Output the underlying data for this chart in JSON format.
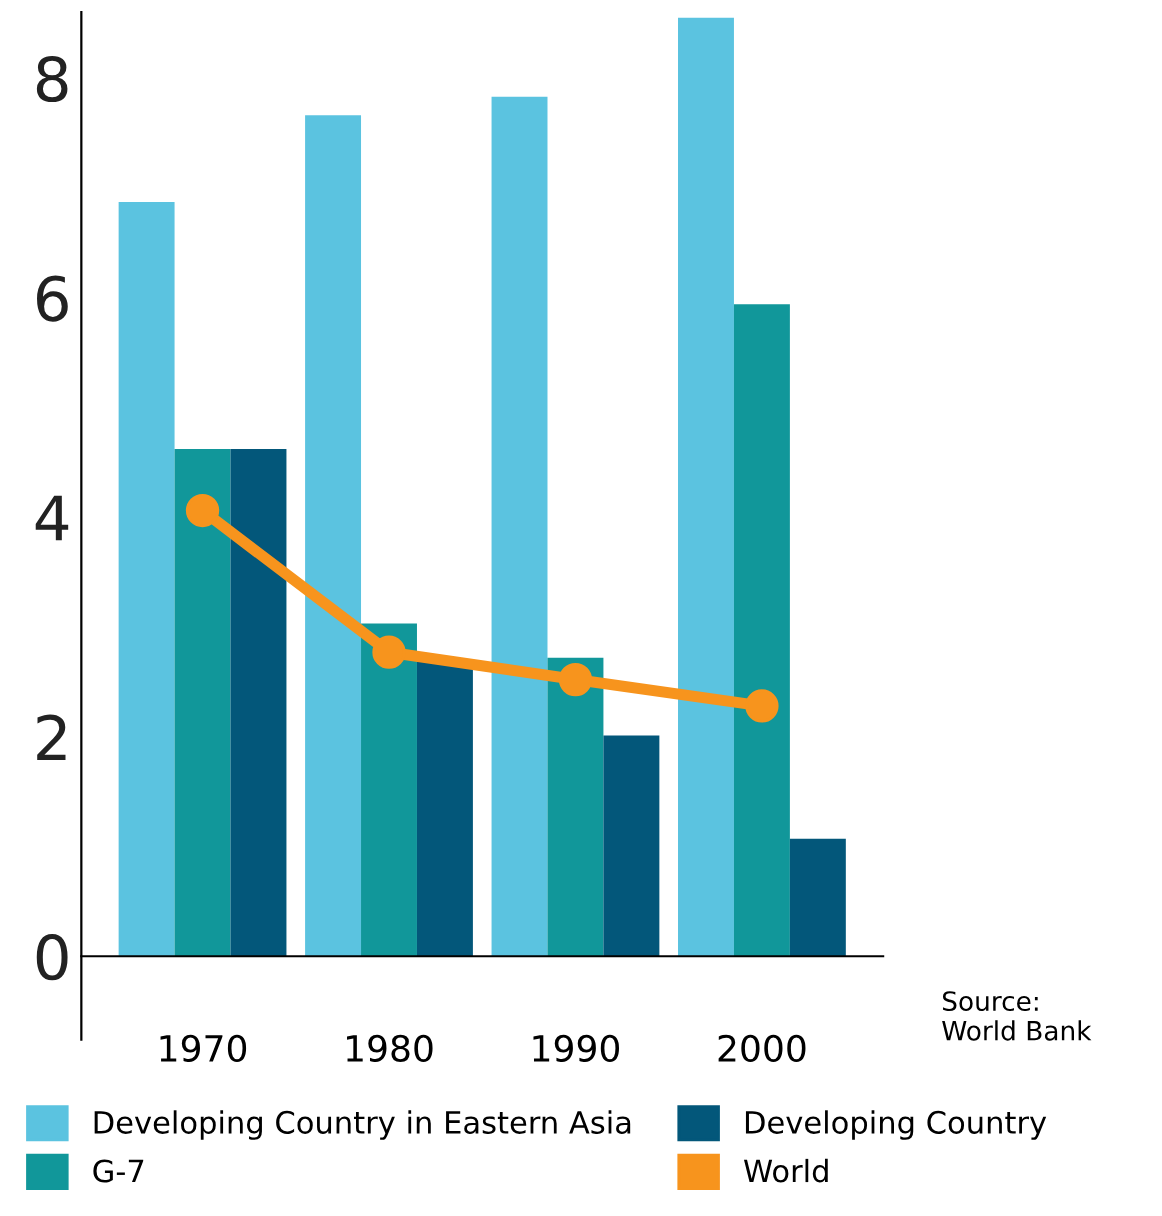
{
  "chart_data": {
    "type": "bar",
    "categories": [
      "1970",
      "1980",
      "1990",
      "2000"
    ],
    "series": [
      {
        "name": "Developing Country in Eastern Asia",
        "color": "#5bc3e0",
        "values": [
          6.87,
          7.66,
          7.83,
          8.55
        ]
      },
      {
        "name": "G-7",
        "color": "#11979a",
        "values": [
          4.62,
          3.03,
          2.72,
          5.94
        ]
      },
      {
        "name": "Developing Country",
        "color": "#03577a",
        "values": [
          4.62,
          2.68,
          2.01,
          1.07
        ]
      },
      {
        "name": "World",
        "type": "line",
        "color": "#f7941d",
        "values": [
          4.06,
          2.77,
          2.52,
          2.28
        ],
        "marker": "circle"
      }
    ],
    "ylim": [
      -0.76,
      8.6
    ],
    "yticks": [
      0,
      2,
      4,
      6,
      8
    ],
    "grid": false,
    "legend": "bottom",
    "annotations": [
      "Source:\nWorld Bank"
    ]
  }
}
